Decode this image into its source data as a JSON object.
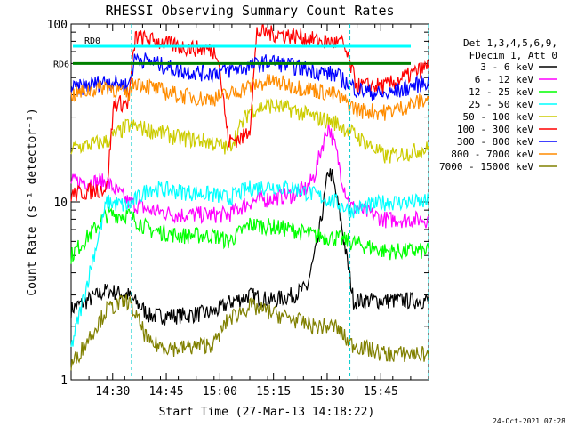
{
  "chart_data": {
    "type": "line",
    "title": "RHESSI Observing Summary Count Rates",
    "xlabel": "Start Time (27-Mar-13 14:18:22)",
    "ylabel": "Count Rate (s⁻¹ detector⁻¹)",
    "y_scale": "log",
    "ylim": [
      1,
      100
    ],
    "xlim_minutes_after_start": [
      0,
      100
    ],
    "x_ticks": [
      "14:30",
      "14:45",
      "15:00",
      "15:15",
      "15:30",
      "15:45"
    ],
    "y_ticks": [
      "1",
      "10",
      "100"
    ],
    "legend_header": [
      "Det 1,3,4,5,6,9,",
      "FDecim 1, Att 0"
    ],
    "legend_placement": "right",
    "footer_date": "24-Oct-2021 07:28",
    "markers": [
      {
        "label": "RD0",
        "y": 75,
        "color": "#00ffff"
      },
      {
        "label": "RD6",
        "y": 60,
        "color": "#008000"
      }
    ],
    "dashed_vlines_minutes": [
      16.9,
      78.0,
      100
    ],
    "series": [
      {
        "name": "3 - 6 keV",
        "color": "#000000",
        "points": [
          [
            0,
            2.5
          ],
          [
            10,
            3.2
          ],
          [
            16,
            3.0
          ],
          [
            22,
            2.3
          ],
          [
            30,
            2.3
          ],
          [
            40,
            2.4
          ],
          [
            44,
            2.7
          ],
          [
            50,
            3.0
          ],
          [
            56,
            2.8
          ],
          [
            62,
            3.0
          ],
          [
            66,
            3.3
          ],
          [
            69,
            6
          ],
          [
            71,
            11
          ],
          [
            72,
            15
          ],
          [
            73,
            14
          ],
          [
            75,
            9
          ],
          [
            77,
            5
          ],
          [
            79,
            2.8
          ],
          [
            88,
            2.8
          ],
          [
            100,
            2.8
          ]
        ]
      },
      {
        "name": "6 - 12 keV",
        "color": "#ff00ff",
        "points": [
          [
            0,
            13
          ],
          [
            10,
            13
          ],
          [
            16,
            10
          ],
          [
            22,
            9
          ],
          [
            30,
            8.5
          ],
          [
            40,
            8.5
          ],
          [
            44,
            8.5
          ],
          [
            50,
            10
          ],
          [
            56,
            10.5
          ],
          [
            62,
            11
          ],
          [
            66,
            12
          ],
          [
            68,
            14
          ],
          [
            70,
            20
          ],
          [
            72,
            27
          ],
          [
            74,
            20
          ],
          [
            76,
            13
          ],
          [
            78,
            9.5
          ],
          [
            88,
            8
          ],
          [
            100,
            8
          ]
        ]
      },
      {
        "name": "12 - 25 keV",
        "color": "#00ff00",
        "points": [
          [
            0,
            5
          ],
          [
            10,
            8.5
          ],
          [
            16,
            8.5
          ],
          [
            22,
            7
          ],
          [
            30,
            6.5
          ],
          [
            40,
            6.5
          ],
          [
            44,
            6
          ],
          [
            50,
            7.5
          ],
          [
            56,
            7.3
          ],
          [
            62,
            7
          ],
          [
            68,
            6.5
          ],
          [
            74,
            6.3
          ],
          [
            78,
            6
          ],
          [
            88,
            5.3
          ],
          [
            100,
            5.3
          ]
        ]
      },
      {
        "name": "25 - 50 keV",
        "color": "#00ffff",
        "points": [
          [
            0,
            1.5
          ],
          [
            10,
            10
          ],
          [
            16,
            9.5
          ],
          [
            22,
            12
          ],
          [
            30,
            11.5
          ],
          [
            40,
            11
          ],
          [
            44,
            10.5
          ],
          [
            50,
            12
          ],
          [
            56,
            12.3
          ],
          [
            62,
            12
          ],
          [
            68,
            11
          ],
          [
            74,
            10
          ],
          [
            78,
            9
          ],
          [
            88,
            10
          ],
          [
            100,
            10
          ]
        ]
      },
      {
        "name": "50 - 100 keV",
        "color": "#cccc00",
        "points": [
          [
            0,
            20
          ],
          [
            10,
            22
          ],
          [
            16,
            27
          ],
          [
            24,
            25
          ],
          [
            30,
            23
          ],
          [
            38,
            22
          ],
          [
            44,
            20
          ],
          [
            50,
            33
          ],
          [
            56,
            35
          ],
          [
            62,
            33
          ],
          [
            68,
            30
          ],
          [
            74,
            28
          ],
          [
            78,
            25
          ],
          [
            88,
            18
          ],
          [
            100,
            20
          ]
        ]
      },
      {
        "name": "100 - 300 keV",
        "color": "#ff0000",
        "points": [
          [
            0,
            11
          ],
          [
            10,
            12
          ],
          [
            12,
            36
          ],
          [
            16,
            36
          ],
          [
            18,
            85
          ],
          [
            24,
            80
          ],
          [
            30,
            75
          ],
          [
            38,
            72
          ],
          [
            41,
            70
          ],
          [
            44,
            22
          ],
          [
            48,
            23
          ],
          [
            50,
            26
          ],
          [
            52,
            90
          ],
          [
            58,
            88
          ],
          [
            64,
            85
          ],
          [
            70,
            80
          ],
          [
            76,
            78
          ],
          [
            80,
            45
          ],
          [
            88,
            45
          ],
          [
            100,
            58
          ]
        ]
      },
      {
        "name": "300 - 800 keV",
        "color": "#0000ff",
        "points": [
          [
            0,
            43
          ],
          [
            10,
            48
          ],
          [
            16,
            45
          ],
          [
            18,
            65
          ],
          [
            24,
            60
          ],
          [
            30,
            55
          ],
          [
            38,
            53
          ],
          [
            44,
            55
          ],
          [
            50,
            58
          ],
          [
            56,
            62
          ],
          [
            62,
            58
          ],
          [
            68,
            55
          ],
          [
            74,
            52
          ],
          [
            80,
            43
          ],
          [
            88,
            40
          ],
          [
            100,
            48
          ]
        ]
      },
      {
        "name": "800 - 7000 keV",
        "color": "#ff8c00",
        "points": [
          [
            0,
            40
          ],
          [
            10,
            45
          ],
          [
            16,
            40
          ],
          [
            18,
            48
          ],
          [
            24,
            43
          ],
          [
            30,
            40
          ],
          [
            38,
            38
          ],
          [
            44,
            40
          ],
          [
            50,
            45
          ],
          [
            56,
            48
          ],
          [
            62,
            45
          ],
          [
            68,
            43
          ],
          [
            74,
            40
          ],
          [
            80,
            33
          ],
          [
            88,
            32
          ],
          [
            100,
            38
          ]
        ]
      },
      {
        "name": "7000 - 15000 keV",
        "color": "#808000",
        "points": [
          [
            0,
            1.2
          ],
          [
            10,
            2.5
          ],
          [
            16,
            2.8
          ],
          [
            22,
            1.6
          ],
          [
            30,
            1.5
          ],
          [
            40,
            1.6
          ],
          [
            44,
            2.2
          ],
          [
            50,
            2.6
          ],
          [
            56,
            2.4
          ],
          [
            62,
            2.2
          ],
          [
            68,
            2
          ],
          [
            74,
            2
          ],
          [
            78,
            1.6
          ],
          [
            88,
            1.4
          ],
          [
            100,
            1.4
          ]
        ]
      }
    ]
  }
}
